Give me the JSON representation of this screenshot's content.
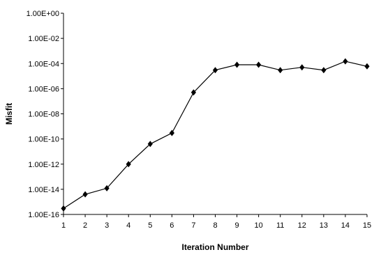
{
  "chart_data": {
    "type": "line",
    "title": "",
    "xlabel": "Iteration Number",
    "ylabel": "Misfit",
    "yscale": "log",
    "ylim": [
      1e-16,
      1
    ],
    "xlim": [
      1,
      15
    ],
    "x": [
      1,
      2,
      3,
      4,
      5,
      6,
      7,
      8,
      9,
      10,
      11,
      12,
      13,
      14,
      15
    ],
    "x_tick_labels": [
      "1",
      "2",
      "3",
      "4",
      "5",
      "6",
      "7",
      "8",
      "9",
      "10",
      "11",
      "12",
      "13",
      "14",
      "15"
    ],
    "y_tick_labels": [
      "1.00E+00",
      "1.00E-02",
      "1.00E-04",
      "1.00E-06",
      "1.00E-08",
      "1.00E-10",
      "1.00E-12",
      "1.00E-14",
      "1.00E-16"
    ],
    "y_tick_values": [
      1,
      0.01,
      0.0001,
      1e-06,
      1e-08,
      1e-10,
      1e-12,
      1e-14,
      1e-16
    ],
    "series": [
      {
        "values": [
          3e-16,
          4e-15,
          1.2e-14,
          1e-12,
          4e-11,
          3e-10,
          5e-07,
          3e-05,
          8e-05,
          8e-05,
          3e-05,
          5e-05,
          3e-05,
          0.00015,
          6e-05
        ],
        "marker": "diamond",
        "color": "#000000"
      }
    ],
    "grid": false,
    "legend": "none"
  }
}
